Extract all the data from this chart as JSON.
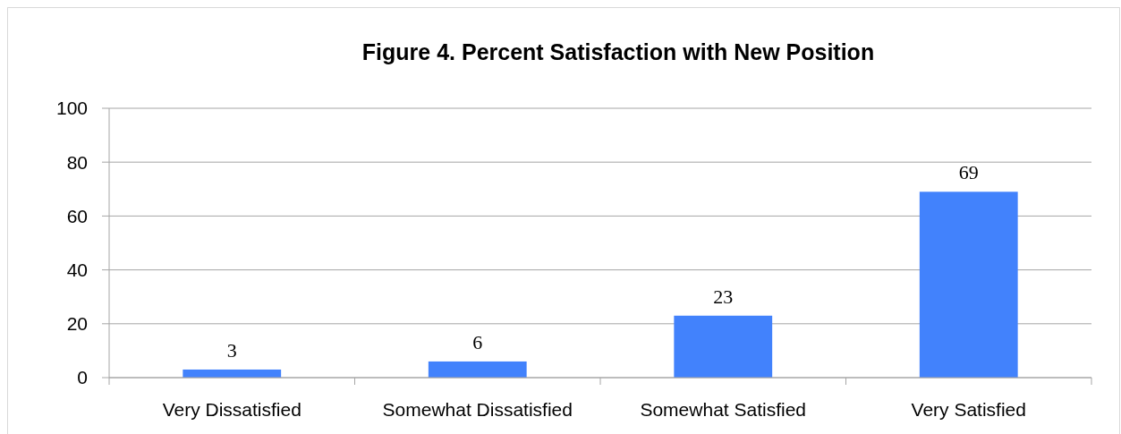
{
  "chart_data": {
    "type": "bar",
    "title": "Figure 4. Percent Satisfaction with New Position",
    "categories": [
      "Very Dissatisfied",
      "Somewhat Dissatisfied",
      "Somewhat Satisfied",
      "Very Satisfied"
    ],
    "values": [
      3,
      6,
      23,
      69
    ],
    "color": "#4282fc",
    "ylim": [
      0,
      100
    ],
    "yticks": [
      0,
      20,
      40,
      60,
      80,
      100
    ],
    "grid": "y",
    "data_labels": true
  }
}
